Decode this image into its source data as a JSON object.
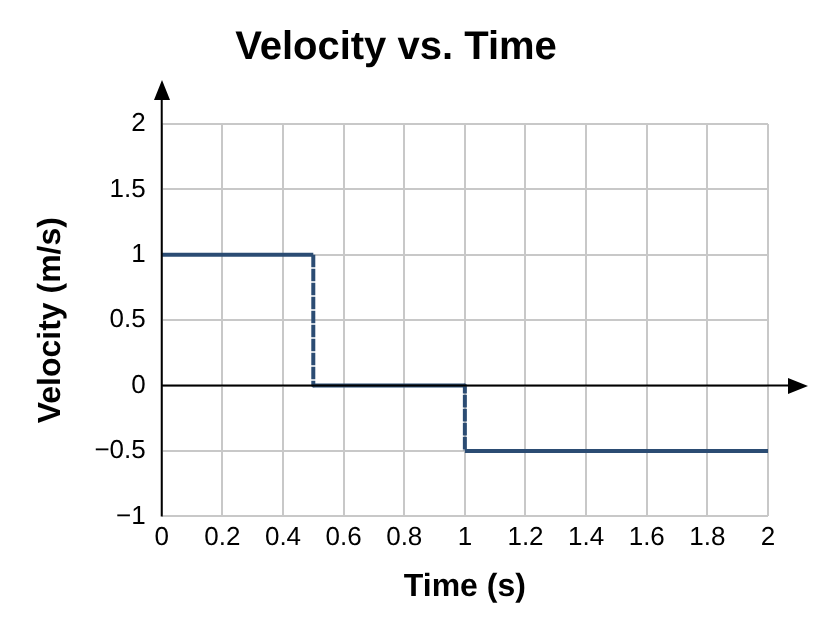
{
  "chart_data": {
    "type": "step",
    "title": "Velocity vs. Time",
    "xlabel": "Time (s)",
    "ylabel": "Velocity (m/s)",
    "x": [
      0,
      0.5,
      1,
      2
    ],
    "series": [
      {
        "color": "#2b4c73",
        "values": [
          1,
          0,
          -0.5,
          -0.5
        ]
      }
    ],
    "xlim": [
      0,
      2
    ],
    "xticks": [
      0,
      0.2,
      0.4,
      0.6,
      0.8,
      1,
      1.2,
      1.4,
      1.6,
      1.8,
      2
    ],
    "ylim": [
      -1,
      2
    ],
    "yticks": [
      {
        "value": -1,
        "label": "−1"
      },
      {
        "value": -0.5,
        "label": "−0.5"
      },
      0,
      0.5,
      1,
      1.5,
      2
    ],
    "grid": true,
    "legend": false,
    "marker": "none",
    "line_style": "solid"
  }
}
